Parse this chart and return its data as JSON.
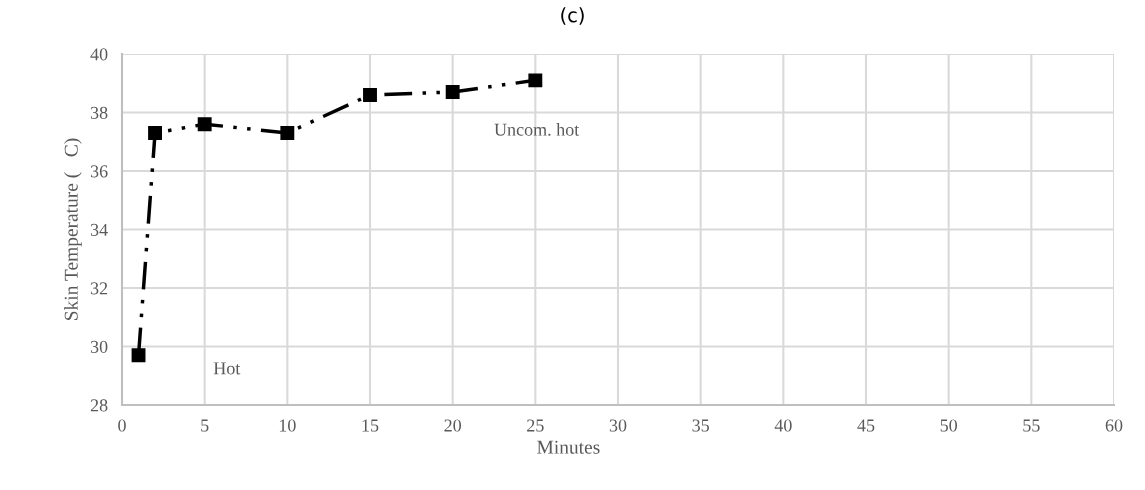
{
  "chart_data": {
    "type": "line",
    "title": "(c)",
    "xlabel": "Minutes",
    "ylabel": "Skin Temperature (   C)",
    "x": [
      1,
      2,
      5,
      10,
      15,
      20,
      25
    ],
    "series": [
      {
        "color": "#000000",
        "values": [
          29.7,
          37.3,
          37.6,
          37.3,
          38.6,
          38.7,
          39.1
        ]
      }
    ],
    "xlim": [
      0,
      60
    ],
    "xticks": [
      0,
      5,
      10,
      15,
      20,
      25,
      30,
      35,
      40,
      45,
      50,
      55,
      60
    ],
    "ylim": [
      28,
      40
    ],
    "yticks": [
      28,
      30,
      32,
      34,
      36,
      38,
      40
    ],
    "grid": true,
    "marker": "square",
    "line_style": "dashed",
    "annotations": [
      "Hot",
      "Uncom. hot"
    ]
  }
}
